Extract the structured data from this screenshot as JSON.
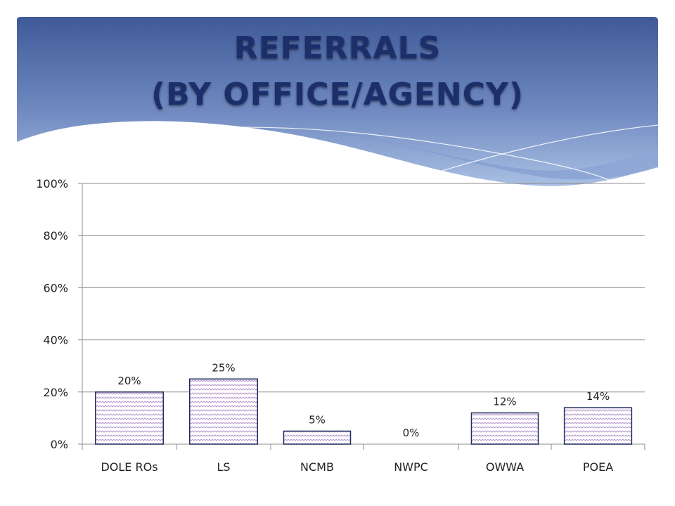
{
  "slide": {
    "title_line1": "REFERRALS",
    "title_line2": "(BY OFFICE/AGENCY)"
  },
  "colors": {
    "header_top": "#3f5a98",
    "header_bottom": "#9fb6de",
    "bar_fill": "#ffffff",
    "bar_pattern": "#b79ad1",
    "bar_stroke": "#1f2d5c",
    "grid": "#8c8c8c",
    "title": "#1c2f6b"
  },
  "chart_data": {
    "type": "bar",
    "title": "",
    "xlabel": "",
    "ylabel": "",
    "categories": [
      "DOLE ROs",
      "LS",
      "NCMB",
      "NWPC",
      "OWWA",
      "POEA"
    ],
    "values": [
      20,
      25,
      5,
      0,
      12,
      14
    ],
    "data_labels": [
      "20%",
      "25%",
      "5%",
      "0%",
      "12%",
      "14%"
    ],
    "ylim": [
      0,
      100
    ],
    "yticks": [
      0,
      20,
      40,
      60,
      80,
      100
    ],
    "ytick_labels": [
      "0%",
      "20%",
      "40%",
      "60%",
      "80%",
      "100%"
    ],
    "grid": true,
    "legend": "none"
  }
}
